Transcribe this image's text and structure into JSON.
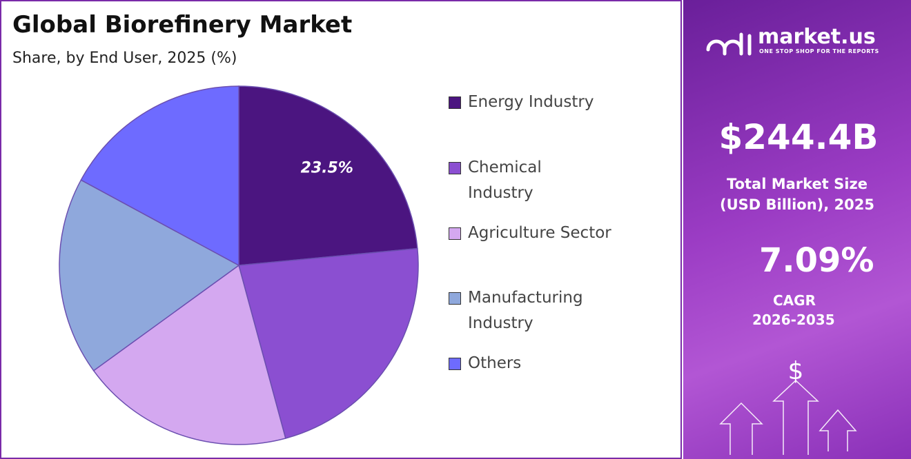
{
  "chart_data": {
    "type": "pie",
    "title": "Global Biorefinery Market",
    "subtitle": "Share, by End User, 2025 (%)",
    "categories": [
      "Energy Industry",
      "Chemical Industry",
      "Agriculture Sector",
      "Manufacturing Industry",
      "Others"
    ],
    "values": [
      23.5,
      22.3,
      19.2,
      17.9,
      17.1
    ],
    "value_labels": [
      "23.5%",
      null,
      null,
      null,
      null
    ],
    "colors": [
      "#4b1580",
      "#8b4fd1",
      "#d4a8f0",
      "#8fa8dc",
      "#6e6bff"
    ]
  },
  "panel": {
    "brand": "market.us",
    "tagline": "ONE STOP SHOP FOR THE REPORTS",
    "market_size": "$244.4B",
    "market_size_label": "Total Market Size (USD Billion), 2025",
    "cagr": "7.09%",
    "cagr_label": "CAGR",
    "cagr_period": "2026-2035"
  }
}
